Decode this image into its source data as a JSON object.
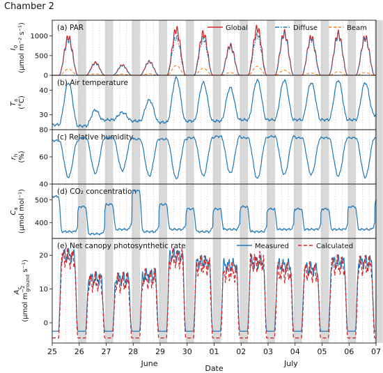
{
  "figure": {
    "title": "Chamber 2",
    "xlabel": "Date",
    "date_ticks": [
      "25",
      "26",
      "27",
      "28",
      "29",
      "30",
      "01",
      "02",
      "03",
      "04",
      "05",
      "06",
      "07"
    ],
    "month_labels": [
      "June",
      "July"
    ]
  },
  "colors": {
    "global": "#d62728",
    "diffuse": "#1f77b4",
    "beam": "#ff7f0e",
    "measured": "#1f77b4",
    "calculated": "#d62728",
    "night_shade": "#d9d9d9",
    "grid": "#bfbfbf"
  },
  "chart_data": [
    {
      "id": "a",
      "type": "line",
      "title": "(a) PAR",
      "ylabel_main": "I",
      "ylabel_sub": "0",
      "ylabel_unit": "(μmol m⁻² s⁻¹)",
      "ylim": [
        0,
        1400
      ],
      "yticks": [
        0,
        500,
        1000
      ],
      "legend": [
        "Global",
        "Diffuse",
        "Beam"
      ],
      "daily_peaks": {
        "x_day": [
          0.6,
          1.6,
          2.6,
          3.6,
          4.6,
          5.6,
          6.6,
          7.6,
          8.6,
          9.6,
          10.6,
          11.6
        ],
        "global": [
          1050,
          350,
          280,
          380,
          1270,
          1150,
          820,
          1300,
          1170,
          1050,
          1150,
          1050
        ],
        "diffuse": [
          980,
          330,
          270,
          370,
          1050,
          1000,
          780,
          1100,
          1120,
          1000,
          1100,
          1000
        ],
        "beam": [
          160,
          40,
          30,
          40,
          250,
          180,
          70,
          230,
          130,
          60,
          90,
          70
        ]
      }
    },
    {
      "id": "b",
      "type": "line",
      "title": "(b) Air temperature",
      "ylabel_main": "T",
      "ylabel_sub": "a",
      "ylabel_unit": "(°C)",
      "ylim": [
        24,
        46
      ],
      "yticks": [
        30,
        40
      ],
      "daily_extremes": {
        "x_day": [
          0,
          1,
          2,
          3,
          4,
          5,
          6,
          7,
          8,
          9,
          10,
          11,
          12
        ],
        "min": [
          26.0,
          25.5,
          28.0,
          27.5,
          27.0,
          27.5,
          27.5,
          28.0,
          28.0,
          28.0,
          28.0,
          28.0,
          30.0
        ],
        "max": [
          43.0,
          32.0,
          31.0,
          36.0,
          45.0,
          43.0,
          41.0,
          44.0,
          44.0,
          43.0,
          44.0,
          43.0
        ]
      }
    },
    {
      "id": "c",
      "type": "line",
      "title": "(c) Relative humidity",
      "ylabel_main": "r",
      "ylabel_sub": "h",
      "ylabel_unit": "(%)",
      "ylim": [
        40,
        80
      ],
      "yticks": [
        40,
        60,
        80
      ],
      "daily_extremes": {
        "x_day": [
          0,
          1,
          2,
          3,
          4,
          5,
          6,
          7,
          8,
          9,
          10,
          11,
          12
        ],
        "max": [
          72,
          74,
          74,
          73,
          73,
          74,
          75,
          74,
          75,
          74,
          74,
          74,
          75
        ],
        "min": [
          45,
          48,
          50,
          46,
          44,
          46,
          48,
          44,
          47,
          47,
          46,
          45
        ]
      }
    },
    {
      "id": "d",
      "type": "line",
      "title": "(d) CO₂ concentration",
      "ylabel_main": "C",
      "ylabel_sub": "a",
      "ylabel_unit": "(μmol mol⁻¹)",
      "ylim": [
        330,
        570
      ],
      "yticks": [
        400,
        500
      ],
      "daily_extremes": {
        "x_day": [
          0,
          1,
          2,
          3,
          4,
          5,
          6,
          7,
          8,
          9,
          10,
          11,
          12
        ],
        "night_max": [
          515,
          470,
          480,
          540,
          480,
          460,
          460,
          470,
          460,
          460,
          460,
          470,
          495
        ],
        "day_min": [
          360,
          350,
          370,
          360,
          370,
          360,
          370,
          360,
          370,
          370,
          370,
          370
        ]
      }
    },
    {
      "id": "e",
      "type": "line",
      "title": "(e) Net canopy photosynthetic rate",
      "ylabel_main": "A",
      "ylabel_sub": "c",
      "ylabel_unit_pre": "(μmol m",
      "ylabel_unit_sup": "−2",
      "ylabel_unit_subscript": "ground",
      "ylabel_unit_post": " s⁻¹)",
      "ylim": [
        -6,
        25
      ],
      "yticks": [
        0,
        10,
        20
      ],
      "legend": [
        "Measured",
        "Calculated"
      ],
      "daily_levels": {
        "x_day": [
          0.6,
          1.6,
          2.6,
          3.6,
          4.6,
          5.6,
          6.6,
          7.6,
          8.6,
          9.6,
          10.6,
          11.6
        ],
        "measured_day": [
          20,
          13,
          13,
          14,
          20,
          18,
          17,
          18,
          17,
          16,
          18,
          18
        ],
        "calculated_day": [
          19,
          12,
          12,
          13,
          19,
          17,
          15,
          18,
          15,
          15,
          17,
          17
        ],
        "measured_night": -2.5,
        "calculated_night": -4.5
      }
    }
  ]
}
